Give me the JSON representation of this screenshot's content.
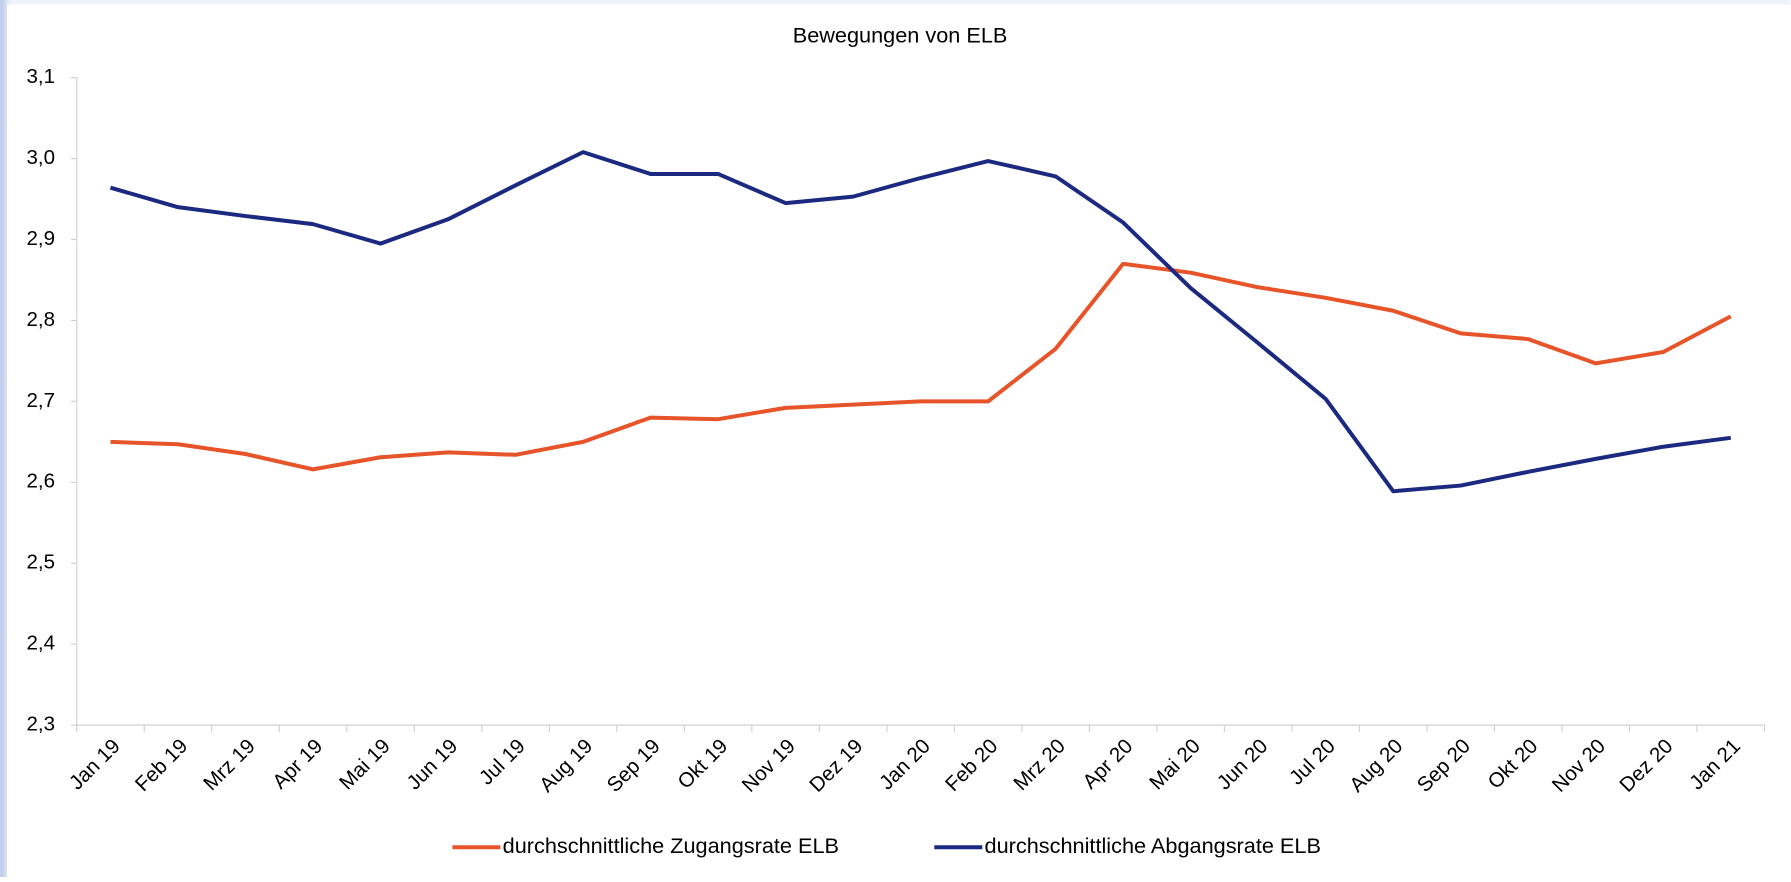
{
  "chart_data": {
    "type": "line",
    "title": "Bewegungen von ELB",
    "categories": [
      "Jan 19",
      "Feb 19",
      "Mrz 19",
      "Apr 19",
      "Mai 19",
      "Jun 19",
      "Jul 19",
      "Aug 19",
      "Sep 19",
      "Okt 19",
      "Nov 19",
      "Dez 19",
      "Jan 20",
      "Feb 20",
      "Mrz 20",
      "Apr 20",
      "Mai 20",
      "Jun 20",
      "Jul 20",
      "Aug 20",
      "Sep 20",
      "Okt 20",
      "Nov 20",
      "Dez 20",
      "Jan 21"
    ],
    "series": [
      {
        "name": "durchschnittliche Zugangsrate ELB",
        "color": "#e8542a",
        "values": [
          2.65,
          2.647,
          2.635,
          2.616,
          2.631,
          2.637,
          2.634,
          2.65,
          2.68,
          2.678,
          2.692,
          2.696,
          2.7,
          2.7,
          2.765,
          2.87,
          2.859,
          2.841,
          2.828,
          2.812,
          2.784,
          2.777,
          2.747,
          2.761,
          2.805
        ]
      },
      {
        "name": "durchschnittliche Abgangsrate ELB",
        "color": "#1b2a80",
        "values": [
          2.964,
          2.94,
          2.929,
          2.919,
          2.895,
          2.925,
          2.967,
          3.008,
          2.981,
          2.981,
          2.945,
          2.953,
          2.976,
          2.997,
          2.978,
          2.921,
          2.84,
          2.772,
          2.703,
          2.589,
          2.596,
          2.613,
          2.629,
          2.644,
          2.655
        ]
      }
    ],
    "ylim": [
      2.3,
      3.1
    ],
    "yticks": [
      {
        "value": 2.3,
        "label": "2,3"
      },
      {
        "value": 2.4,
        "label": "2,4"
      },
      {
        "value": 2.5,
        "label": "2,5"
      },
      {
        "value": 2.6,
        "label": "2,6"
      },
      {
        "value": 2.7,
        "label": "2,7"
      },
      {
        "value": 2.8,
        "label": "2,8"
      },
      {
        "value": 2.9,
        "label": "2,9"
      },
      {
        "value": 3.0,
        "label": "3,0"
      },
      {
        "value": 3.1,
        "label": "3,1"
      }
    ],
    "grid": false,
    "legend": "bottom"
  }
}
